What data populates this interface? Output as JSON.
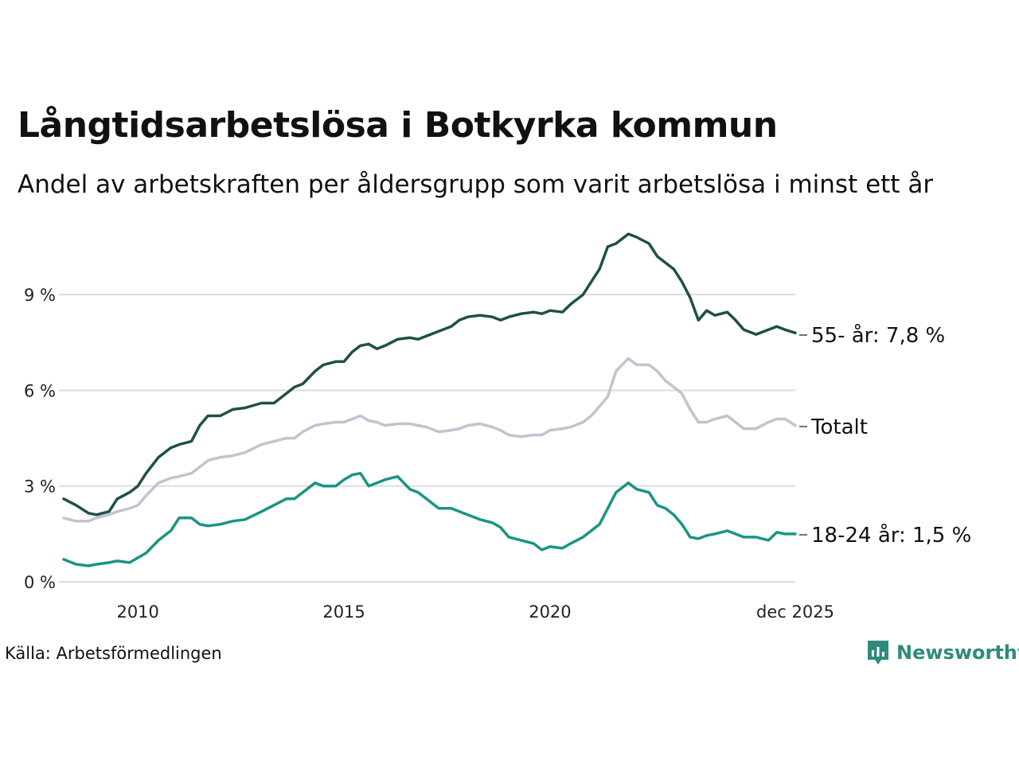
{
  "title": "Långtidsarbetslösa i Botkyrka kommun",
  "subtitle": "Andel av arbetskraften per åldersgrupp som varit arbetslösa i minst ett år",
  "source": "Källa: Arbetsförmedlingen",
  "logo": {
    "text": "Newsworthy",
    "icon": "bar-chart-bubble-icon",
    "color": "#2e8b7a"
  },
  "chart_data": {
    "type": "line",
    "x_unit": "year (decimal)",
    "xlim": [
      2008.2,
      2025.95
    ],
    "ylim": [
      0,
      11
    ],
    "y_ticks": [
      0,
      3,
      6,
      9
    ],
    "y_tick_labels": [
      "0 %",
      "3 %",
      "6 %",
      "9 %"
    ],
    "x_ticks": [
      2010,
      2015,
      2020,
      2025.95
    ],
    "x_tick_labels": [
      "2010",
      "2015",
      "2020",
      "dec 2025"
    ],
    "grid": "horizontal",
    "legend": "direct labels at line ends (right)",
    "series": [
      {
        "name": "55- år",
        "end_label": "55- år: 7,8 %",
        "color": "#1f5048",
        "points": [
          [
            2008.2,
            2.6
          ],
          [
            2008.5,
            2.4
          ],
          [
            2008.8,
            2.15
          ],
          [
            2009.0,
            2.1
          ],
          [
            2009.3,
            2.2
          ],
          [
            2009.5,
            2.6
          ],
          [
            2009.8,
            2.8
          ],
          [
            2010.0,
            3.0
          ],
          [
            2010.2,
            3.4
          ],
          [
            2010.5,
            3.9
          ],
          [
            2010.8,
            4.2
          ],
          [
            2011.0,
            4.3
          ],
          [
            2011.3,
            4.4
          ],
          [
            2011.5,
            4.9
          ],
          [
            2011.7,
            5.2
          ],
          [
            2012.0,
            5.2
          ],
          [
            2012.3,
            5.4
          ],
          [
            2012.6,
            5.45
          ],
          [
            2013.0,
            5.6
          ],
          [
            2013.3,
            5.6
          ],
          [
            2013.6,
            5.9
          ],
          [
            2013.8,
            6.1
          ],
          [
            2014.0,
            6.2
          ],
          [
            2014.3,
            6.6
          ],
          [
            2014.5,
            6.8
          ],
          [
            2014.8,
            6.9
          ],
          [
            2015.0,
            6.9
          ],
          [
            2015.2,
            7.2
          ],
          [
            2015.4,
            7.4
          ],
          [
            2015.6,
            7.45
          ],
          [
            2015.8,
            7.3
          ],
          [
            2016.0,
            7.4
          ],
          [
            2016.3,
            7.6
          ],
          [
            2016.6,
            7.65
          ],
          [
            2016.8,
            7.6
          ],
          [
            2017.0,
            7.7
          ],
          [
            2017.3,
            7.85
          ],
          [
            2017.6,
            8.0
          ],
          [
            2017.8,
            8.2
          ],
          [
            2018.0,
            8.3
          ],
          [
            2018.3,
            8.35
          ],
          [
            2018.6,
            8.3
          ],
          [
            2018.8,
            8.2
          ],
          [
            2019.0,
            8.3
          ],
          [
            2019.3,
            8.4
          ],
          [
            2019.6,
            8.45
          ],
          [
            2019.8,
            8.4
          ],
          [
            2020.0,
            8.5
          ],
          [
            2020.3,
            8.45
          ],
          [
            2020.5,
            8.7
          ],
          [
            2020.8,
            9.0
          ],
          [
            2021.0,
            9.4
          ],
          [
            2021.2,
            9.8
          ],
          [
            2021.4,
            10.5
          ],
          [
            2021.6,
            10.6
          ],
          [
            2021.9,
            10.9
          ],
          [
            2022.1,
            10.8
          ],
          [
            2022.4,
            10.6
          ],
          [
            2022.6,
            10.2
          ],
          [
            2022.8,
            10.0
          ],
          [
            2023.0,
            9.8
          ],
          [
            2023.2,
            9.4
          ],
          [
            2023.4,
            8.9
          ],
          [
            2023.6,
            8.2
          ],
          [
            2023.8,
            8.5
          ],
          [
            2024.0,
            8.35
          ],
          [
            2024.3,
            8.45
          ],
          [
            2024.5,
            8.2
          ],
          [
            2024.7,
            7.9
          ],
          [
            2025.0,
            7.75
          ],
          [
            2025.3,
            7.9
          ],
          [
            2025.5,
            8.0
          ],
          [
            2025.7,
            7.9
          ],
          [
            2025.95,
            7.8
          ]
        ]
      },
      {
        "name": "Totalt",
        "end_label": "Totalt",
        "color": "#c4c2d0",
        "points": [
          [
            2008.2,
            2.0
          ],
          [
            2008.5,
            1.9
          ],
          [
            2008.8,
            1.9
          ],
          [
            2009.0,
            2.0
          ],
          [
            2009.3,
            2.1
          ],
          [
            2009.5,
            2.2
          ],
          [
            2009.8,
            2.3
          ],
          [
            2010.0,
            2.4
          ],
          [
            2010.2,
            2.7
          ],
          [
            2010.5,
            3.1
          ],
          [
            2010.8,
            3.25
          ],
          [
            2011.0,
            3.3
          ],
          [
            2011.3,
            3.4
          ],
          [
            2011.5,
            3.6
          ],
          [
            2011.7,
            3.8
          ],
          [
            2012.0,
            3.9
          ],
          [
            2012.3,
            3.95
          ],
          [
            2012.6,
            4.05
          ],
          [
            2013.0,
            4.3
          ],
          [
            2013.3,
            4.4
          ],
          [
            2013.6,
            4.5
          ],
          [
            2013.8,
            4.5
          ],
          [
            2014.0,
            4.7
          ],
          [
            2014.3,
            4.9
          ],
          [
            2014.5,
            4.95
          ],
          [
            2014.8,
            5.0
          ],
          [
            2015.0,
            5.0
          ],
          [
            2015.2,
            5.1
          ],
          [
            2015.4,
            5.2
          ],
          [
            2015.6,
            5.05
          ],
          [
            2015.8,
            5.0
          ],
          [
            2016.0,
            4.9
          ],
          [
            2016.3,
            4.95
          ],
          [
            2016.6,
            4.95
          ],
          [
            2016.8,
            4.9
          ],
          [
            2017.0,
            4.85
          ],
          [
            2017.3,
            4.7
          ],
          [
            2017.6,
            4.75
          ],
          [
            2017.8,
            4.8
          ],
          [
            2018.0,
            4.9
          ],
          [
            2018.3,
            4.95
          ],
          [
            2018.6,
            4.85
          ],
          [
            2018.8,
            4.75
          ],
          [
            2019.0,
            4.6
          ],
          [
            2019.3,
            4.55
          ],
          [
            2019.6,
            4.6
          ],
          [
            2019.8,
            4.6
          ],
          [
            2020.0,
            4.75
          ],
          [
            2020.3,
            4.8
          ],
          [
            2020.5,
            4.85
          ],
          [
            2020.8,
            5.0
          ],
          [
            2021.0,
            5.2
          ],
          [
            2021.2,
            5.5
          ],
          [
            2021.4,
            5.8
          ],
          [
            2021.6,
            6.6
          ],
          [
            2021.9,
            7.0
          ],
          [
            2022.1,
            6.8
          ],
          [
            2022.4,
            6.8
          ],
          [
            2022.6,
            6.6
          ],
          [
            2022.8,
            6.3
          ],
          [
            2023.0,
            6.1
          ],
          [
            2023.2,
            5.9
          ],
          [
            2023.4,
            5.4
          ],
          [
            2023.6,
            5.0
          ],
          [
            2023.8,
            5.0
          ],
          [
            2024.0,
            5.1
          ],
          [
            2024.3,
            5.2
          ],
          [
            2024.5,
            5.0
          ],
          [
            2024.7,
            4.8
          ],
          [
            2025.0,
            4.8
          ],
          [
            2025.3,
            5.0
          ],
          [
            2025.5,
            5.1
          ],
          [
            2025.7,
            5.1
          ],
          [
            2025.95,
            4.9
          ]
        ]
      },
      {
        "name": "18-24 år",
        "end_label": "18-24 år: 1,5 %",
        "color": "#1a9485",
        "points": [
          [
            2008.2,
            0.7
          ],
          [
            2008.5,
            0.55
          ],
          [
            2008.8,
            0.5
          ],
          [
            2009.0,
            0.55
          ],
          [
            2009.3,
            0.6
          ],
          [
            2009.5,
            0.65
          ],
          [
            2009.8,
            0.6
          ],
          [
            2010.0,
            0.75
          ],
          [
            2010.2,
            0.9
          ],
          [
            2010.5,
            1.3
          ],
          [
            2010.8,
            1.6
          ],
          [
            2011.0,
            2.0
          ],
          [
            2011.3,
            2.0
          ],
          [
            2011.5,
            1.8
          ],
          [
            2011.7,
            1.75
          ],
          [
            2012.0,
            1.8
          ],
          [
            2012.3,
            1.9
          ],
          [
            2012.6,
            1.95
          ],
          [
            2013.0,
            2.2
          ],
          [
            2013.3,
            2.4
          ],
          [
            2013.6,
            2.6
          ],
          [
            2013.8,
            2.6
          ],
          [
            2014.0,
            2.8
          ],
          [
            2014.3,
            3.1
          ],
          [
            2014.5,
            3.0
          ],
          [
            2014.8,
            3.0
          ],
          [
            2015.0,
            3.2
          ],
          [
            2015.2,
            3.35
          ],
          [
            2015.4,
            3.4
          ],
          [
            2015.6,
            3.0
          ],
          [
            2015.8,
            3.1
          ],
          [
            2016.0,
            3.2
          ],
          [
            2016.3,
            3.3
          ],
          [
            2016.6,
            2.9
          ],
          [
            2016.8,
            2.8
          ],
          [
            2017.0,
            2.6
          ],
          [
            2017.3,
            2.3
          ],
          [
            2017.6,
            2.3
          ],
          [
            2017.8,
            2.2
          ],
          [
            2018.0,
            2.1
          ],
          [
            2018.3,
            1.95
          ],
          [
            2018.6,
            1.85
          ],
          [
            2018.8,
            1.7
          ],
          [
            2019.0,
            1.4
          ],
          [
            2019.3,
            1.3
          ],
          [
            2019.6,
            1.2
          ],
          [
            2019.8,
            1.0
          ],
          [
            2020.0,
            1.1
          ],
          [
            2020.3,
            1.05
          ],
          [
            2020.5,
            1.2
          ],
          [
            2020.8,
            1.4
          ],
          [
            2021.0,
            1.6
          ],
          [
            2021.2,
            1.8
          ],
          [
            2021.4,
            2.3
          ],
          [
            2021.6,
            2.8
          ],
          [
            2021.9,
            3.1
          ],
          [
            2022.1,
            2.9
          ],
          [
            2022.4,
            2.8
          ],
          [
            2022.6,
            2.4
          ],
          [
            2022.8,
            2.3
          ],
          [
            2023.0,
            2.1
          ],
          [
            2023.2,
            1.8
          ],
          [
            2023.4,
            1.4
          ],
          [
            2023.6,
            1.35
          ],
          [
            2023.8,
            1.45
          ],
          [
            2024.0,
            1.5
          ],
          [
            2024.3,
            1.6
          ],
          [
            2024.5,
            1.5
          ],
          [
            2024.7,
            1.4
          ],
          [
            2025.0,
            1.4
          ],
          [
            2025.3,
            1.3
          ],
          [
            2025.5,
            1.55
          ],
          [
            2025.7,
            1.5
          ],
          [
            2025.95,
            1.5
          ]
        ]
      }
    ]
  }
}
